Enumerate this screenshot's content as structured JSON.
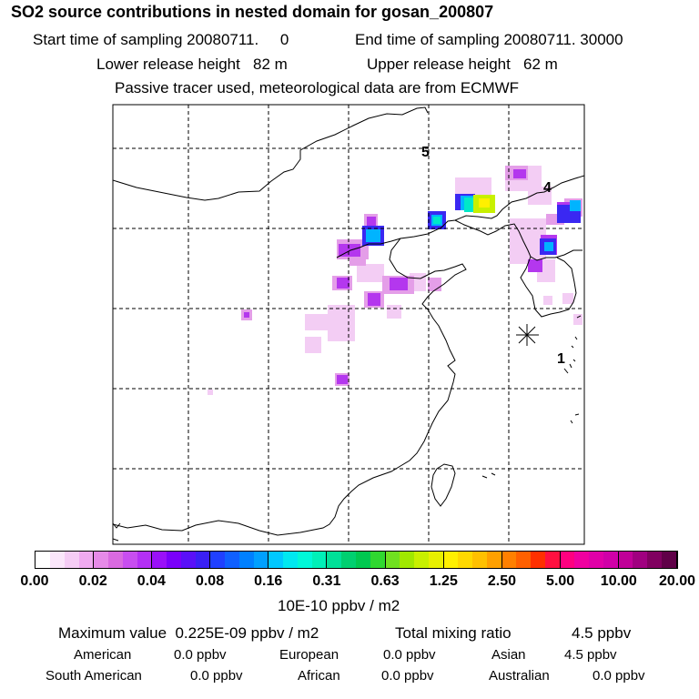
{
  "header": {
    "title": "SO2 source contributions in nested domain for gosan_200807",
    "start_time": "Start time of sampling 20080711.     0",
    "end_time": "End time of sampling 20080711. 30000",
    "lower_release": "Lower release height   82 m",
    "upper_release": "Upper release height   62 m",
    "tracer_note": "Passive tracer used, meteorological data are from ECMWF"
  },
  "map": {
    "labels": [
      "5",
      "4",
      "1"
    ],
    "colors": {
      "frame": "#000000",
      "coast": "#000000",
      "grid": "#000000"
    }
  },
  "chart_data": {
    "type": "heatmap",
    "title": "SO2 source contributions in nested domain for gosan_200807",
    "colorbar_ticks": [
      "0.00",
      "0.02",
      "0.04",
      "0.08",
      "0.16",
      "0.31",
      "0.63",
      "1.25",
      "2.50",
      "5.00",
      "10.00",
      "20.00"
    ],
    "colorbar_colors": [
      "#ffffff",
      "#fbe6fb",
      "#f5ccf5",
      "#efaaf0",
      "#e68ae8",
      "#d96ae0",
      "#c84ef0",
      "#b430f5",
      "#9a10f8",
      "#7a00fa",
      "#5a10f8",
      "#3a20f5",
      "#2040ff",
      "#1060ff",
      "#0080ff",
      "#00a0ff",
      "#00c8ff",
      "#00e8f0",
      "#00f8d8",
      "#00f0b8",
      "#00e098",
      "#00d070",
      "#00c850",
      "#30d830",
      "#70e020",
      "#a0e800",
      "#c8f000",
      "#e8f000",
      "#fff000",
      "#ffd800",
      "#ffc000",
      "#ffa000",
      "#ff8000",
      "#ff6000",
      "#ff3000",
      "#ff1040",
      "#ff0080",
      "#f000a0",
      "#e000a8",
      "#d000a8",
      "#c00098",
      "#a00080",
      "#800060",
      "#600048"
    ],
    "units": "10E-10 ppbv / m2",
    "release_site_label": "1"
  },
  "stats": {
    "max_value": "Maximum value  0.225E-09 ppbv / m2",
    "total_mixing": "Total mixing ratio",
    "total_mixing_value": "4.5 ppbv",
    "regions": [
      {
        "name": "American",
        "value": "0.0 ppbv"
      },
      {
        "name": "European",
        "value": "0.0 ppbv"
      },
      {
        "name": "Asian",
        "value": "4.5 ppbv"
      },
      {
        "name": "South American",
        "value": "0.0 ppbv"
      },
      {
        "name": "African",
        "value": "0.0 ppbv"
      },
      {
        "name": "Australian",
        "value": "0.0 ppbv"
      }
    ]
  }
}
